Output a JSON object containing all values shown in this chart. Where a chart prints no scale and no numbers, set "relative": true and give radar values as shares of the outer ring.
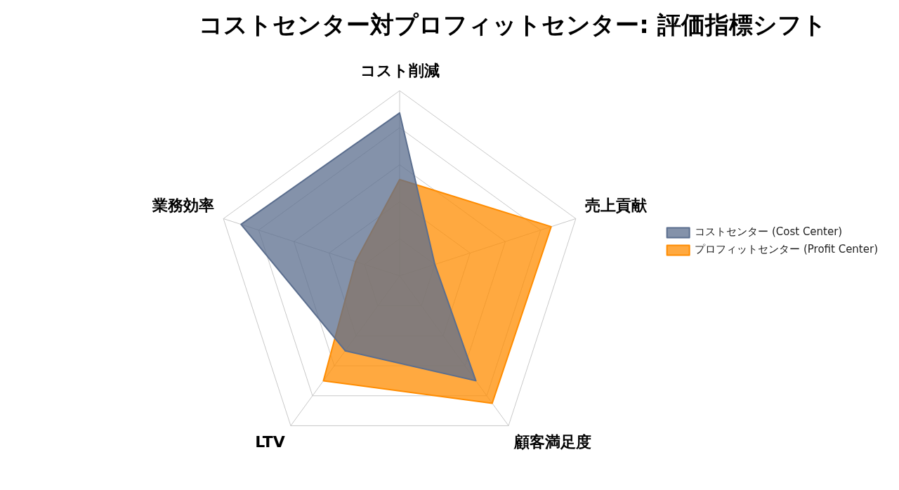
{
  "chart_data": {
    "type": "radar",
    "title": "コストセンター対プロフィットセンター: 評価指標シフト",
    "categories": [
      "コスト削減",
      "売上貢献",
      "顧客満足度",
      "LTV",
      "業務効率"
    ],
    "relative": true,
    "grid": true,
    "legend": "right",
    "marker": "none",
    "series": [
      {
        "name": "コストセンター (Cost Center)",
        "color": "#5b6e8e",
        "values": [
          0.88,
          0.2,
          0.7,
          0.5,
          0.9
        ]
      },
      {
        "name": "プロフィットセンター (Profit Center)",
        "color": "#ff8c00",
        "values": [
          0.52,
          0.86,
          0.85,
          0.7,
          0.25
        ]
      }
    ]
  }
}
